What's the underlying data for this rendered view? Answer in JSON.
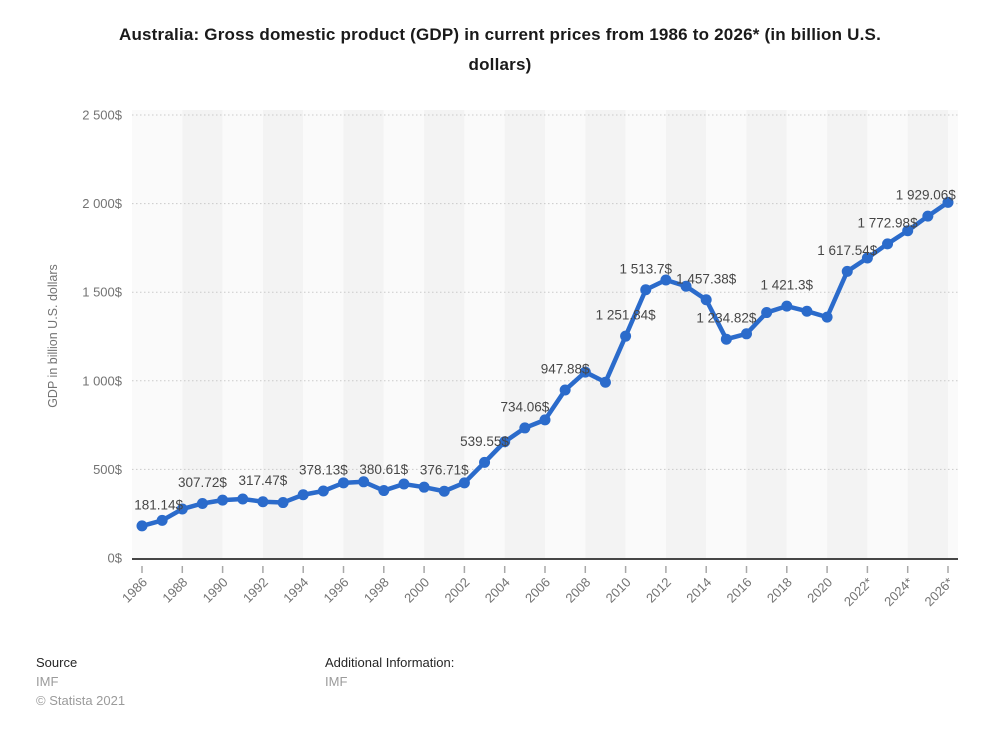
{
  "chart_data": {
    "type": "line",
    "title": "Australia: Gross domestic product (GDP) in current prices from 1986 to 2026* (in billion U.S. dollars)",
    "xlabel": "",
    "ylabel": "GDP in billion U.S. dollars",
    "ylim": [
      0,
      2500
    ],
    "grid": "horizontal dotted gridlines, alternating vertical 2-year background bands",
    "legend_position": "none",
    "y_tick_labels": [
      "0$",
      "500$",
      "1 000$",
      "1 500$",
      "2 000$",
      "2 500$"
    ],
    "x_tick_labels": [
      "1986",
      "1988",
      "1990",
      "1992",
      "1994",
      "1996",
      "1998",
      "2000",
      "2002",
      "2004",
      "2006",
      "2008",
      "2010",
      "2012",
      "2014",
      "2016",
      "2018",
      "2020",
      "2022*",
      "2024*",
      "2026*"
    ],
    "years": [
      1986,
      1987,
      1988,
      1989,
      1990,
      1991,
      1992,
      1993,
      1994,
      1995,
      1996,
      1997,
      1998,
      1999,
      2000,
      2001,
      2002,
      2003,
      2004,
      2005,
      2006,
      2007,
      2008,
      2009,
      2010,
      2011,
      2012,
      2013,
      2014,
      2015,
      2016,
      2017,
      2018,
      2019,
      2020,
      2021,
      2022,
      2023,
      2024,
      2025,
      2026
    ],
    "values": [
      181.14,
      212.06,
      276.28,
      307.72,
      326.63,
      333.17,
      317.47,
      312.93,
      356.81,
      378.13,
      424.26,
      429.98,
      380.61,
      417.35,
      399.65,
      376.71,
      424.16,
      539.55,
      655.99,
      734.06,
      779.39,
      947.88,
      1049.3,
      992.06,
      1251.84,
      1513.7,
      1568.94,
      1533.58,
      1457.38,
      1234.82,
      1265.19,
      1385.1,
      1421.3,
      1392.69,
      1359.33,
      1617.54,
      1692.96,
      1772.98,
      1846.72,
      1929.06,
      2006.96
    ],
    "point_labels": {
      "1986": "181.14$",
      "1989": "307.72$",
      "1992": "317.47$",
      "1995": "378.13$",
      "1998": "380.61$",
      "2001": "376.71$",
      "2003": "539.55$",
      "2005": "734.06$",
      "2007": "947.88$",
      "2010": "1 251.84$",
      "2011": "1 513.7$",
      "2014": "1 457.38$",
      "2015": "1 234.82$",
      "2018": "1 421.3$",
      "2021": "1 617.54$",
      "2023": "1 772.98$",
      "2025": "1 929.06$"
    }
  },
  "footer": {
    "source_label": "Source",
    "source_value": "IMF",
    "copyright": "© Statista 2021",
    "additional_label": "Additional Information:",
    "additional_value": "IMF"
  },
  "colors": {
    "line": "#2b6bcb",
    "band_light": "#fafafa",
    "band_dark": "#f3f3f3",
    "grid": "#c9c9c9",
    "axis_line": "#464646",
    "tick_mark": "#a8a8a8",
    "tick_text": "#737373",
    "point_label_text": "#474747",
    "title_text": "#1a1a1a"
  }
}
